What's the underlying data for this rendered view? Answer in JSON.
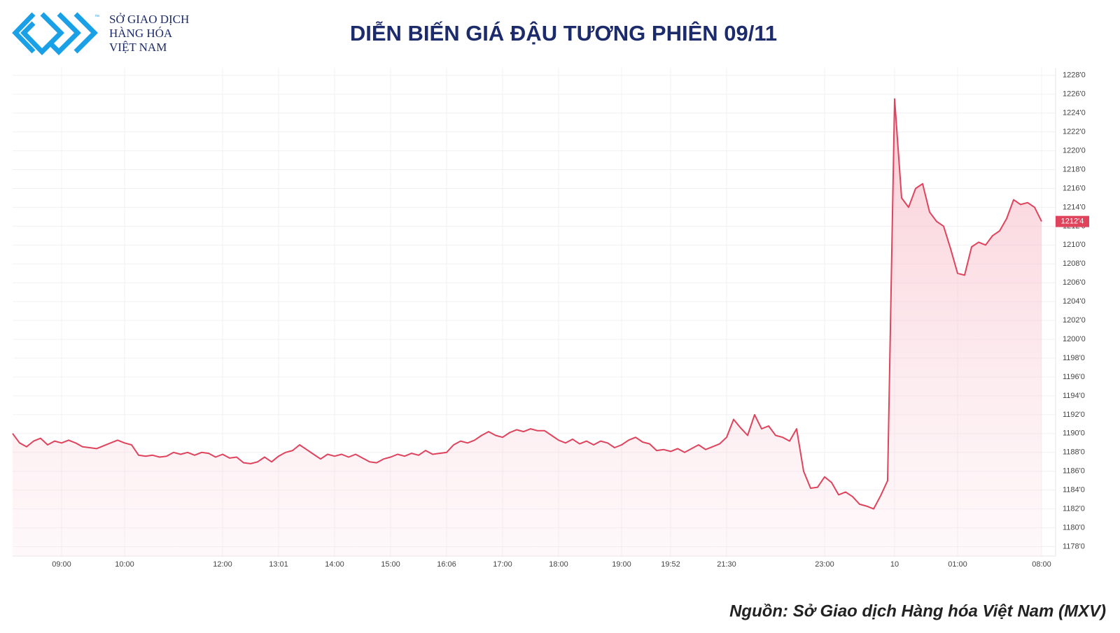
{
  "logo": {
    "lines": [
      "SỞ GIAO DỊCH",
      "HÀNG HÓA",
      "VIỆT NAM"
    ],
    "trademark": "™"
  },
  "chart_data": {
    "type": "line",
    "title": "DIỄN BIẾN GIÁ ĐẬU TƯƠNG PHIÊN 09/11",
    "color": "#e0435c",
    "grid": true,
    "values": [
      1190,
      1189,
      1188.6,
      1189.2,
      1189.5,
      1188.8,
      1189.2,
      1189,
      1189.3,
      1189,
      1188.6,
      1188.5,
      1188.4,
      1188.7,
      1189,
      1189.3,
      1189,
      1188.8,
      1187.7,
      1187.6,
      1187.7,
      1187.5,
      1187.6,
      1188,
      1187.8,
      1188,
      1187.7,
      1188,
      1187.9,
      1187.5,
      1187.8,
      1187.4,
      1187.5,
      1186.9,
      1186.8,
      1187,
      1187.5,
      1187,
      1187.6,
      1188,
      1188.2,
      1188.8,
      1188.3,
      1187.8,
      1187.3,
      1187.8,
      1187.6,
      1187.8,
      1187.5,
      1187.8,
      1187.4,
      1187,
      1186.9,
      1187.3,
      1187.5,
      1187.8,
      1187.6,
      1187.9,
      1187.7,
      1188.2,
      1187.8,
      1187.9,
      1188,
      1188.8,
      1189.2,
      1189,
      1189.3,
      1189.8,
      1190.2,
      1189.8,
      1189.6,
      1190.1,
      1190.4,
      1190.2,
      1190.5,
      1190.3,
      1190.3,
      1189.8,
      1189.3,
      1189,
      1189.4,
      1188.9,
      1189.2,
      1188.8,
      1189.2,
      1189,
      1188.5,
      1188.8,
      1189.3,
      1189.6,
      1189.1,
      1188.9,
      1188.2,
      1188.3,
      1188.1,
      1188.4,
      1188,
      1188.4,
      1188.8,
      1188.3,
      1188.6,
      1188.9,
      1189.6,
      1191.5,
      1190.6,
      1189.8,
      1192,
      1190.5,
      1190.8,
      1189.8,
      1189.6,
      1189.2,
      1190.5,
      1186,
      1184.2,
      1184.3,
      1185.4,
      1184.8,
      1183.5,
      1183.8,
      1183.3,
      1182.5,
      1182.3,
      1182,
      1183.4,
      1185,
      1225.5,
      1215,
      1214,
      1216,
      1216.5,
      1213.5,
      1212.5,
      1212,
      1209.6,
      1207,
      1206.8,
      1209.8,
      1210.3,
      1210,
      1211,
      1211.5,
      1212.8,
      1214.8,
      1214.3,
      1214.5,
      1214,
      1212.5
    ],
    "xlim": [
      0,
      149
    ],
    "xticks": [
      {
        "value": 7,
        "label": "09:00"
      },
      {
        "value": 16,
        "label": "10:00"
      },
      {
        "value": 30,
        "label": "12:00"
      },
      {
        "value": 38,
        "label": "13:01"
      },
      {
        "value": 46,
        "label": "14:00"
      },
      {
        "value": 54,
        "label": "15:00"
      },
      {
        "value": 62,
        "label": "16:06"
      },
      {
        "value": 70,
        "label": "17:00"
      },
      {
        "value": 78,
        "label": "18:00"
      },
      {
        "value": 87,
        "label": "19:00"
      },
      {
        "value": 94,
        "label": "19:52"
      },
      {
        "value": 102,
        "label": "21:30"
      },
      {
        "value": 116,
        "label": "23:00"
      },
      {
        "value": 126,
        "label": "10"
      },
      {
        "value": 135,
        "label": "01:00"
      },
      {
        "value": 147,
        "label": "08:00"
      }
    ],
    "ylim": [
      1177,
      1228.8
    ],
    "yticks": [
      {
        "value": 1178,
        "label": "1178'0"
      },
      {
        "value": 1180,
        "label": "1180'0"
      },
      {
        "value": 1182,
        "label": "1182'0"
      },
      {
        "value": 1184,
        "label": "1184'0"
      },
      {
        "value": 1186,
        "label": "1186'0"
      },
      {
        "value": 1188,
        "label": "1188'0"
      },
      {
        "value": 1190,
        "label": "1190'0"
      },
      {
        "value": 1192,
        "label": "1192'0"
      },
      {
        "value": 1194,
        "label": "1194'0"
      },
      {
        "value": 1196,
        "label": "1196'0"
      },
      {
        "value": 1198,
        "label": "1198'0"
      },
      {
        "value": 1200,
        "label": "1200'0"
      },
      {
        "value": 1202,
        "label": "1202'0"
      },
      {
        "value": 1204,
        "label": "1204'0"
      },
      {
        "value": 1206,
        "label": "1206'0"
      },
      {
        "value": 1208,
        "label": "1208'0"
      },
      {
        "value": 1210,
        "label": "1210'0"
      },
      {
        "value": 1212,
        "label": "1212'0"
      },
      {
        "value": 1214,
        "label": "1214'0"
      },
      {
        "value": 1216,
        "label": "1216'0"
      },
      {
        "value": 1218,
        "label": "1218'0"
      },
      {
        "value": 1220,
        "label": "1220'0"
      },
      {
        "value": 1222,
        "label": "1222'0"
      },
      {
        "value": 1224,
        "label": "1224'0"
      },
      {
        "value": 1226,
        "label": "1226'0"
      },
      {
        "value": 1228,
        "label": "1228'0"
      }
    ],
    "last_price": {
      "value": 1212.5,
      "label": "1212'4"
    }
  },
  "source": "Nguồn: Sở Giao dịch Hàng hóa Việt Nam (MXV)"
}
